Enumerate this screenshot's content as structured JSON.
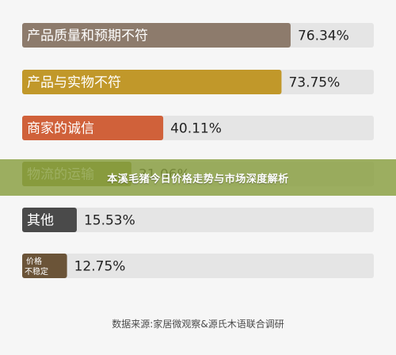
{
  "chart_data": {
    "type": "bar",
    "orientation": "horizontal",
    "categories": [
      "产品质量和预期不符",
      "产品与实物不符",
      "商家的诚信",
      "物流的运输",
      "其他",
      "价格不稳定"
    ],
    "values": [
      76.34,
      73.75,
      40.11,
      31.06,
      15.53,
      12.75
    ],
    "value_labels": [
      "76.34%",
      "73.75%",
      "40.11%",
      "31.06%",
      "15.53%",
      "12.75%"
    ],
    "xlim": [
      0,
      100
    ],
    "colors": [
      "#8d7b6c",
      "#c1982a",
      "#d0613a",
      "#8a8f38",
      "#4a4a4a",
      "#6b5438"
    ],
    "track_color": "#e5e5e5",
    "grid": false,
    "legend": false
  },
  "banner": {
    "text": "本溪毛猪今日价格走势与市场深度解析"
  },
  "source": {
    "text": "数据来源:家居微观察&源氏木语联合调研"
  }
}
